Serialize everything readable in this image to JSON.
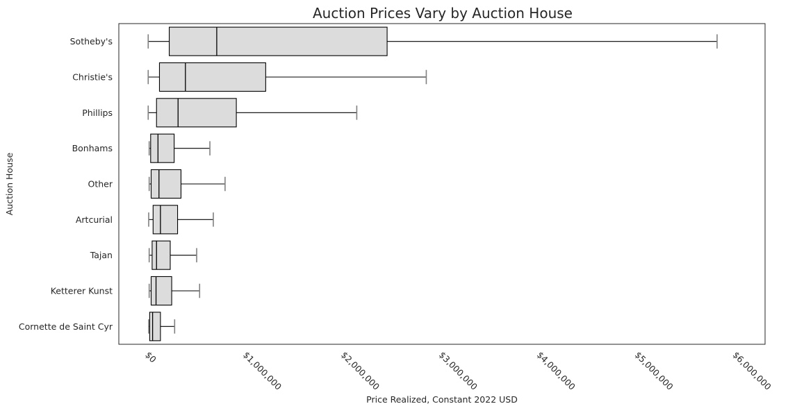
{
  "chart_data": {
    "type": "boxplot",
    "orientation": "horizontal",
    "title": "Auction Prices Vary by Auction House",
    "xlabel": "Price Realized, Constant 2022 USD",
    "ylabel": "Auction House",
    "xlim": [
      -300000,
      6300000
    ],
    "x_ticks": [
      0,
      1000000,
      2000000,
      3000000,
      4000000,
      5000000,
      6000000
    ],
    "x_tick_labels": [
      "$0",
      "$1,000,000",
      "$2,000,000",
      "$3,000,000",
      "$4,000,000",
      "$5,000,000",
      "$6,000,000"
    ],
    "grid": false,
    "colors": {
      "box_fill": "#dcdcdc",
      "box_edge": "#000000",
      "cap": "#808080",
      "frame": "#262626"
    },
    "categories": [
      "Sotheby's",
      "Christie's",
      "Phillips",
      "Bonhams",
      "Other",
      "Artcurial",
      "Tajan",
      "Ketterer Kunst",
      "Cornette de Saint Cyr"
    ],
    "boxes": [
      {
        "min": 0,
        "q1": 215000,
        "median": 700000,
        "q3": 2440000,
        "max": 5810000
      },
      {
        "min": 0,
        "q1": 115000,
        "median": 380000,
        "q3": 1200000,
        "max": 2840000
      },
      {
        "min": 0,
        "q1": 85000,
        "median": 305000,
        "q3": 900000,
        "max": 2130000
      },
      {
        "min": 10000,
        "q1": 25000,
        "median": 100000,
        "q3": 265000,
        "max": 630000
      },
      {
        "min": 10000,
        "q1": 30000,
        "median": 110000,
        "q3": 335000,
        "max": 785000
      },
      {
        "min": 5000,
        "q1": 50000,
        "median": 125000,
        "q3": 300000,
        "max": 665000
      },
      {
        "min": 10000,
        "q1": 40000,
        "median": 85000,
        "q3": 225000,
        "max": 495000
      },
      {
        "min": 10000,
        "q1": 30000,
        "median": 80000,
        "q3": 240000,
        "max": 525000
      },
      {
        "min": 5000,
        "q1": 15000,
        "median": 45000,
        "q3": 125000,
        "max": 270000
      }
    ]
  }
}
